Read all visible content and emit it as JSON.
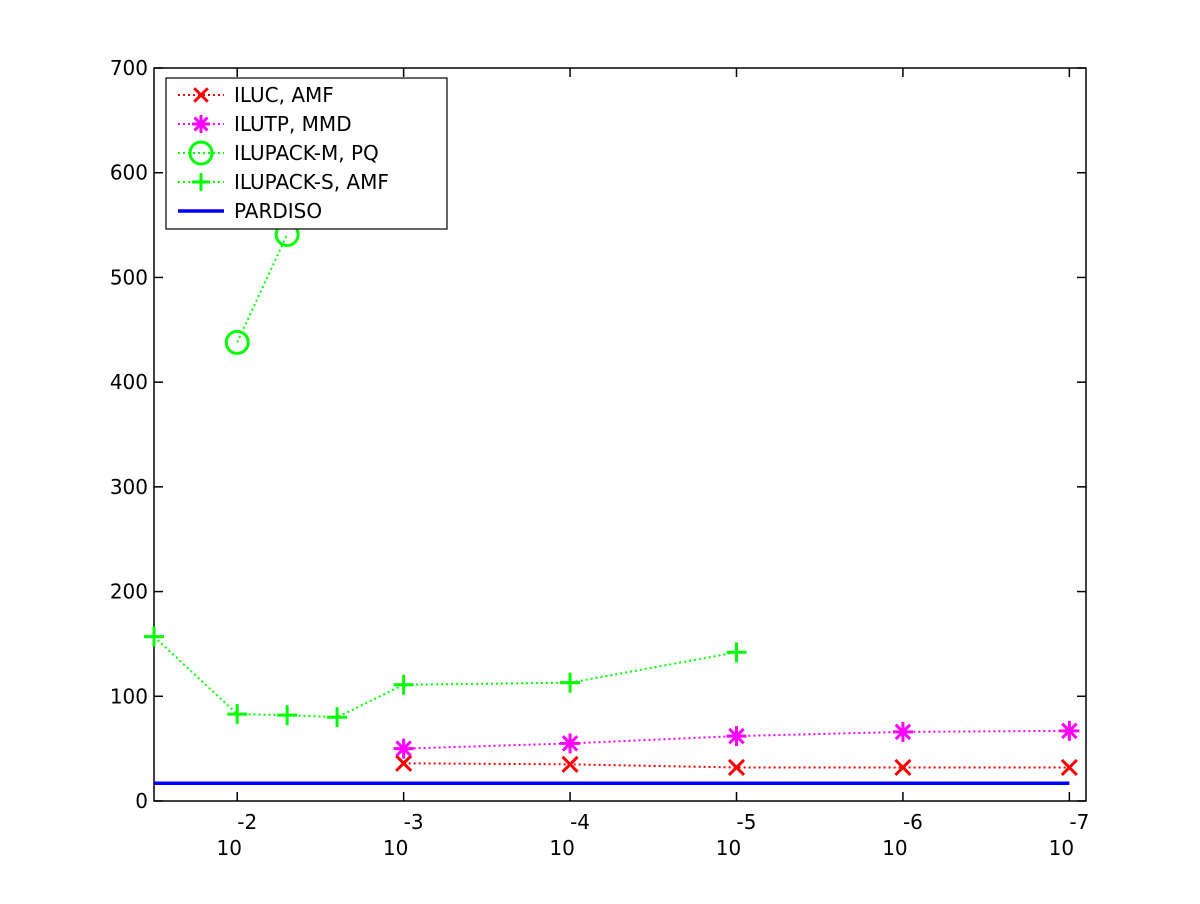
{
  "chart_data": {
    "type": "line",
    "title": "",
    "xlabel": "",
    "ylabel": "",
    "x_scale": "log",
    "x_range": [
      "1e-1.5",
      "1e-7"
    ],
    "ylim": [
      0,
      700
    ],
    "y_ticks": [
      0,
      100,
      200,
      300,
      400,
      500,
      600,
      700
    ],
    "x_ticks": [
      {
        "exp": -2,
        "base": "10",
        "power": "-2"
      },
      {
        "exp": -3,
        "base": "10",
        "power": "-3"
      },
      {
        "exp": -4,
        "base": "10",
        "power": "-4"
      },
      {
        "exp": -5,
        "base": "10",
        "power": "-5"
      },
      {
        "exp": -6,
        "base": "10",
        "power": "-6"
      },
      {
        "exp": -7,
        "base": "10",
        "power": "-7"
      }
    ],
    "grid": false,
    "legend_position": "top-left",
    "series": [
      {
        "name": "ILUC, AMF",
        "color": "#ff0000",
        "marker": "x",
        "line_style": "dotted",
        "x_exp": [
          -3,
          -4,
          -5,
          -6,
          -7
        ],
        "values": [
          36,
          35,
          32,
          32,
          32
        ]
      },
      {
        "name": "ILUTP, MMD",
        "color": "#ff00ff",
        "marker": "asterisk",
        "line_style": "dotted",
        "x_exp": [
          -3,
          -4,
          -5,
          -6,
          -7
        ],
        "values": [
          50,
          55,
          62,
          66,
          67
        ]
      },
      {
        "name": "ILUPACK-M, PQ",
        "color": "#00ff00",
        "marker": "circle",
        "line_style": "dotted",
        "x_exp": [
          -2,
          -2.3
        ],
        "values": [
          438,
          541
        ]
      },
      {
        "name": "ILUPACK-S, AMF",
        "color": "#00ff00",
        "marker": "plus",
        "line_style": "dotted",
        "x_exp": [
          -1.5,
          -2,
          -2.3,
          -2.6,
          -3,
          -4,
          -5
        ],
        "values": [
          157,
          83,
          82,
          80,
          111,
          113,
          142
        ]
      },
      {
        "name": "PARDISO",
        "color": "#0000ff",
        "marker": "none",
        "line_style": "solid",
        "x_exp": [
          -1.5,
          -7
        ],
        "values": [
          17,
          17
        ]
      }
    ]
  }
}
